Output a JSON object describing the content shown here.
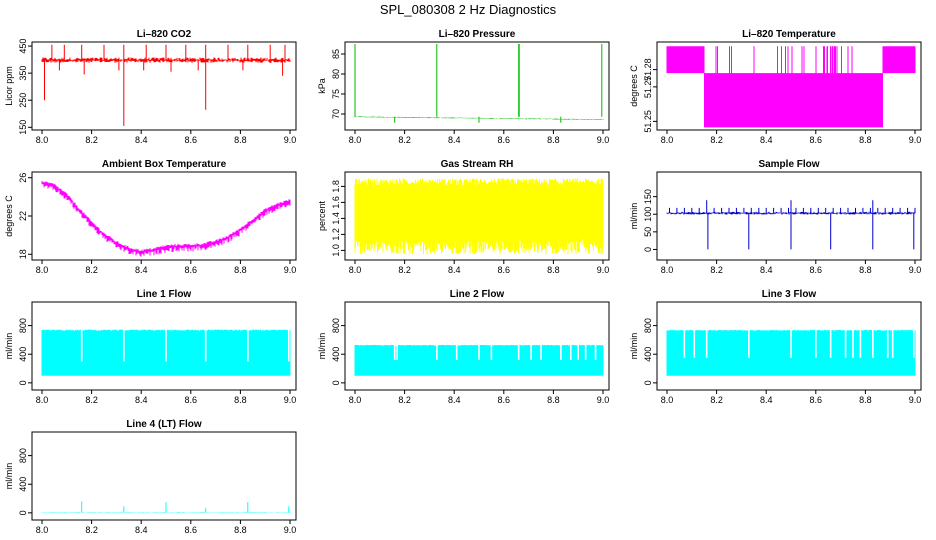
{
  "figure_title": "SPL_080308  2 Hz Diagnostics",
  "chart_data": [
    {
      "type": "line",
      "title": "Li–820 CO2",
      "ylabel": "Licor ppm",
      "color": "#ff0000",
      "xlim": [
        8.0,
        9.0
      ],
      "ylim": [
        140,
        465
      ],
      "xticks": [
        8.0,
        8.2,
        8.4,
        8.6,
        8.8,
        9.0
      ],
      "xtick_labels": [
        "8.0",
        "8.2",
        "8.4",
        "8.6",
        "8.8",
        "9.0"
      ],
      "yticks": [
        150,
        250,
        350,
        450
      ],
      "ytick_labels": [
        "150",
        "250",
        "350",
        "450"
      ],
      "series": [
        {
          "name": "CO2",
          "base": 398,
          "noise": 10,
          "pattern": "spikes",
          "spikes_up": [
            8.04,
            8.09,
            8.16,
            8.25,
            8.33,
            8.42,
            8.5,
            8.58,
            8.66,
            8.75,
            8.83,
            8.92,
            8.98
          ],
          "spike_up_to": 455,
          "spikes_down": [
            8.01,
            8.07,
            8.17,
            8.31,
            8.33,
            8.41,
            8.52,
            8.63,
            8.66,
            8.81,
            8.97
          ],
          "spike_down_to": [
            250,
            360,
            345,
            360,
            155,
            360,
            355,
            360,
            215,
            360,
            340
          ]
        }
      ]
    },
    {
      "type": "line",
      "title": "Li–820 Pressure",
      "ylabel": "kPa",
      "color": "#00bb00",
      "xlim": [
        8.0,
        9.0
      ],
      "ylim": [
        66,
        88
      ],
      "xticks": [
        8.0,
        8.2,
        8.4,
        8.6,
        8.8,
        9.0
      ],
      "xtick_labels": [
        "8.0",
        "8.2",
        "8.4",
        "8.6",
        "8.8",
        "9.0"
      ],
      "yticks": [
        70,
        75,
        80,
        85
      ],
      "ytick_labels": [
        "70",
        "75",
        "80",
        "85"
      ],
      "series": [
        {
          "name": "Pressure",
          "base_start": 69.3,
          "base_end": 68.6,
          "noise": 0.12,
          "pattern": "spikes",
          "spikes_up": [
            8.0,
            8.33,
            8.66,
            8.662,
            8.995
          ],
          "spike_up_to": 87.5,
          "spikes_down": [
            8.16,
            8.5,
            8.83
          ],
          "spike_down_to": [
            67.8,
            67.8,
            67.8
          ]
        }
      ]
    },
    {
      "type": "line",
      "title": "Li–820 Temperature",
      "ylabel": "degrees C",
      "color": "#ff00ff",
      "xlim": [
        8.0,
        9.0
      ],
      "ylim": [
        51.245,
        51.296
      ],
      "xticks": [
        8.0,
        8.2,
        8.4,
        8.6,
        8.8,
        9.0
      ],
      "xtick_labels": [
        "8.0",
        "8.2",
        "8.4",
        "8.6",
        "8.8",
        "9.0"
      ],
      "yticks": [
        51.25,
        51.27,
        51.28
      ],
      "ytick_labels": [
        "51.25",
        "51.27",
        "51.28"
      ],
      "series": [
        {
          "name": "Temperature",
          "pattern": "twolevel",
          "high": 51.2935,
          "low": 51.278,
          "low2": 51.2465,
          "segments": [
            [
              8.0,
              8.05,
              8.0,
              "high"
            ],
            [
              8.05,
              8.15,
              1.0,
              "high"
            ],
            [
              8.15,
              8.87,
              1.0,
              "low"
            ],
            [
              8.87,
              9.0,
              1.0,
              "high"
            ]
          ]
        }
      ]
    },
    {
      "type": "line",
      "title": "Ambient Box Temperature",
      "ylabel": "degrees C",
      "color": "#ff00ff",
      "xlim": [
        8.0,
        9.0
      ],
      "ylim": [
        17.4,
        26.6
      ],
      "xticks": [
        8.0,
        8.2,
        8.4,
        8.6,
        8.8,
        9.0
      ],
      "xtick_labels": [
        "8.0",
        "8.2",
        "8.4",
        "8.6",
        "8.8",
        "9.0"
      ],
      "yticks": [
        18,
        22,
        26
      ],
      "ytick_labels": [
        "18",
        "22",
        "26"
      ],
      "series": [
        {
          "name": "Ambient",
          "pattern": "curve",
          "noise": 0.35,
          "x": [
            8.0,
            8.05,
            8.1,
            8.15,
            8.2,
            8.25,
            8.3,
            8.35,
            8.4,
            8.45,
            8.5,
            8.55,
            8.6,
            8.65,
            8.7,
            8.75,
            8.8,
            8.85,
            8.9,
            8.95,
            9.0
          ],
          "y": [
            25.5,
            25.2,
            24.2,
            22.7,
            21.3,
            20.1,
            19.2,
            18.6,
            18.3,
            18.5,
            18.8,
            18.9,
            18.9,
            19.0,
            19.3,
            19.8,
            20.6,
            21.6,
            22.6,
            23.2,
            23.6
          ]
        }
      ]
    },
    {
      "type": "line",
      "title": "Gas Stream RH",
      "ylabel": "percent",
      "color": "#ffff00",
      "xlim": [
        8.0,
        9.0
      ],
      "ylim": [
        0.88,
        1.98
      ],
      "xticks": [
        8.0,
        8.2,
        8.4,
        8.6,
        8.8,
        9.0
      ],
      "xtick_labels": [
        "8.0",
        "8.2",
        "8.4",
        "8.6",
        "8.8",
        "9.0"
      ],
      "yticks": [
        1.0,
        1.2,
        1.4,
        1.6,
        1.8
      ],
      "ytick_labels": [
        "1.0",
        "1.2",
        "1.4",
        "1.6",
        "1.8"
      ],
      "series": [
        {
          "name": "RH",
          "pattern": "band",
          "low": 0.95,
          "high": 1.9,
          "dense_low": 1.15,
          "dense_high": 1.8
        }
      ]
    },
    {
      "type": "line",
      "title": "Sample Flow",
      "ylabel": "ml/min",
      "color": "#0000cc",
      "xlim": [
        8.0,
        9.0
      ],
      "ylim": [
        -30,
        220
      ],
      "xticks": [
        8.0,
        8.2,
        8.4,
        8.6,
        8.8,
        9.0
      ],
      "xtick_labels": [
        "8.0",
        "8.2",
        "8.4",
        "8.6",
        "8.8",
        "9.0"
      ],
      "yticks": [
        0,
        50,
        100,
        150
      ],
      "ytick_labels": [
        "0",
        "50",
        "100",
        "150"
      ],
      "series": [
        {
          "name": "Sample",
          "base": 103,
          "noise": 4,
          "pattern": "spikes",
          "spikes_up": [
            8.16,
            8.5,
            8.83
          ],
          "spike_up_to": 140,
          "spikes_down": [
            8.165,
            8.33,
            8.5,
            8.66,
            8.83,
            8.995
          ],
          "spike_down_to": [
            0,
            0,
            0,
            0,
            0,
            0
          ],
          "ripple_every": 0.03,
          "ripple_to": 118
        }
      ]
    },
    {
      "type": "line",
      "title": "Line 1 Flow",
      "ylabel": "ml/min",
      "color": "#00ffff",
      "xlim": [
        8.0,
        9.0
      ],
      "ylim": [
        -100,
        1130
      ],
      "xticks": [
        8.0,
        8.2,
        8.4,
        8.6,
        8.8,
        9.0
      ],
      "xtick_labels": [
        "8.0",
        "8.2",
        "8.4",
        "8.6",
        "8.8",
        "9.0"
      ],
      "yticks": [
        0,
        400,
        800
      ],
      "ytick_labels": [
        "0",
        "400",
        "800"
      ],
      "series": [
        {
          "name": "Line1",
          "pattern": "block",
          "low": 100,
          "high": 745,
          "high_var": 20,
          "gaps": [
            8.16,
            8.33,
            8.5,
            8.66,
            8.83,
            8.995
          ],
          "gap_to": 300
        }
      ]
    },
    {
      "type": "line",
      "title": "Line 2 Flow",
      "ylabel": "ml/min",
      "color": "#00ffff",
      "xlim": [
        8.0,
        9.0
      ],
      "ylim": [
        -100,
        1130
      ],
      "xticks": [
        8.0,
        8.2,
        8.4,
        8.6,
        8.8,
        9.0
      ],
      "xtick_labels": [
        "8.0",
        "8.2",
        "8.4",
        "8.6",
        "8.8",
        "9.0"
      ],
      "yticks": [
        0,
        400,
        800
      ],
      "ytick_labels": [
        "0",
        "400",
        "800"
      ],
      "series": [
        {
          "name": "Line2",
          "pattern": "block",
          "low": 100,
          "high": 530,
          "high_var": 10,
          "gaps": [
            8.16,
            8.17,
            8.33,
            8.41,
            8.5,
            8.55,
            8.66,
            8.71,
            8.75,
            8.83,
            8.87,
            8.9,
            8.93,
            8.97
          ],
          "gap_to": 320
        }
      ]
    },
    {
      "type": "line",
      "title": "Line 3 Flow",
      "ylabel": "ml/min",
      "color": "#00ffff",
      "xlim": [
        8.0,
        9.0
      ],
      "ylim": [
        -100,
        1130
      ],
      "xticks": [
        8.0,
        8.2,
        8.4,
        8.6,
        8.8,
        9.0
      ],
      "xtick_labels": [
        "8.0",
        "8.2",
        "8.4",
        "8.6",
        "8.8",
        "9.0"
      ],
      "yticks": [
        0,
        400,
        800
      ],
      "ytick_labels": [
        "0",
        "400",
        "800"
      ],
      "series": [
        {
          "name": "Line3",
          "pattern": "block",
          "low": 100,
          "high": 740,
          "high_var": 15,
          "gaps": [
            8.07,
            8.11,
            8.16,
            8.33,
            8.5,
            8.6,
            8.66,
            8.72,
            8.75,
            8.78,
            8.83,
            8.89,
            8.91,
            8.995
          ],
          "gap_to": 350
        }
      ]
    },
    {
      "type": "line",
      "title": "Line 4 (LT) Flow",
      "ylabel": "ml/min",
      "color": "#00ffff",
      "xlim": [
        8.0,
        9.0
      ],
      "ylim": [
        -100,
        1130
      ],
      "xticks": [
        8.0,
        8.2,
        8.4,
        8.6,
        8.8,
        9.0
      ],
      "xtick_labels": [
        "8.0",
        "8.2",
        "8.4",
        "8.6",
        "8.8",
        "9.0"
      ],
      "yticks": [
        0,
        400,
        800
      ],
      "ytick_labels": [
        "0",
        "400",
        "800"
      ],
      "series": [
        {
          "name": "Line4",
          "base": 5,
          "noise": 4,
          "pattern": "spikes",
          "spikes_up": [
            8.16,
            8.33,
            8.5,
            8.66,
            8.83,
            8.995
          ],
          "spike_up_to": [
            160,
            90,
            150,
            70,
            150,
            90
          ],
          "spikes_down": [],
          "spike_down_to": []
        }
      ]
    }
  ]
}
